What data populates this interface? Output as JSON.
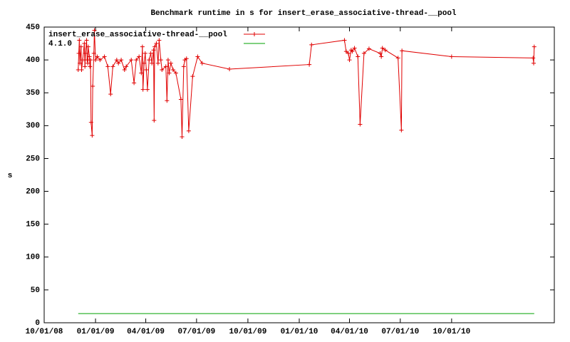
{
  "chart_data": {
    "type": "line",
    "title": "Benchmark runtime in s for insert_erase_associative-thread-__pool",
    "y_label": "s",
    "xlim": [
      "2008-10-01",
      "2011-04-03"
    ],
    "xticks": [
      {
        "value": "2008-10-01",
        "label": "10/01/08"
      },
      {
        "value": "2009-01-01",
        "label": "01/01/09"
      },
      {
        "value": "2009-04-01",
        "label": "04/01/09"
      },
      {
        "value": "2009-07-01",
        "label": "07/01/09"
      },
      {
        "value": "2009-10-01",
        "label": "10/01/09"
      },
      {
        "value": "2010-01-01",
        "label": "01/01/10"
      },
      {
        "value": "2010-04-01",
        "label": "04/01/10"
      },
      {
        "value": "2010-07-01",
        "label": "07/01/10"
      },
      {
        "value": "2010-10-01",
        "label": "10/01/10"
      }
    ],
    "ylim": [
      0,
      450
    ],
    "yticks": [
      0,
      50,
      100,
      150,
      200,
      250,
      300,
      350,
      400,
      450
    ],
    "legend": "top-left",
    "series": [
      {
        "name": "insert_erase_associative-thread-__pool",
        "color": "#e00000",
        "markers": true,
        "x": [
          "2008-12-01",
          "2008-12-02",
          "2008-12-03",
          "2008-12-04",
          "2008-12-06",
          "2008-12-07",
          "2008-12-09",
          "2008-12-12",
          "2008-12-13",
          "2008-12-14",
          "2008-12-16",
          "2008-12-17",
          "2008-12-18",
          "2008-12-19",
          "2008-12-21",
          "2008-12-22",
          "2008-12-23",
          "2008-12-24",
          "2008-12-26",
          "2008-12-27",
          "2008-12-29",
          "2008-12-30",
          "2009-01-01",
          "2009-01-04",
          "2009-01-09",
          "2009-01-17",
          "2009-01-23",
          "2009-01-28",
          "2009-02-01",
          "2009-02-08",
          "2009-02-11",
          "2009-02-16",
          "2009-02-22",
          "2009-02-25",
          "2009-03-06",
          "2009-03-11",
          "2009-03-15",
          "2009-03-20",
          "2009-03-24",
          "2009-03-26",
          "2009-03-27",
          "2009-03-29",
          "2009-03-31",
          "2009-04-02",
          "2009-04-04",
          "2009-04-07",
          "2009-04-10",
          "2009-04-12",
          "2009-04-15",
          "2009-04-16",
          "2009-04-17",
          "2009-04-20",
          "2009-04-23",
          "2009-04-25",
          "2009-04-28",
          "2009-04-30",
          "2009-05-07",
          "2009-05-09",
          "2009-05-11",
          "2009-05-13",
          "2009-05-16",
          "2009-05-20",
          "2009-05-25",
          "2009-06-03",
          "2009-06-05",
          "2009-06-08",
          "2009-06-10",
          "2009-06-13",
          "2009-06-17",
          "2009-06-24",
          "2009-07-03",
          "2009-07-11",
          "2009-08-29",
          "2010-01-19",
          "2010-01-23",
          "2010-03-23",
          "2010-03-26",
          "2010-03-30",
          "2010-04-01",
          "2010-04-04",
          "2010-04-06",
          "2010-04-10",
          "2010-04-16",
          "2010-04-20",
          "2010-04-27",
          "2010-05-06",
          "2010-05-26",
          "2010-05-28",
          "2010-05-30",
          "2010-06-04",
          "2010-06-27",
          "2010-07-03",
          "2010-07-04",
          "2010-10-01",
          "2011-02-24",
          "2011-02-25",
          "2011-02-26"
        ],
        "values": [
          385,
          410,
          430,
          395,
          420,
          385,
          400,
          425,
          390,
          410,
          430,
          400,
          395,
          420,
          405,
          390,
          400,
          305,
          285,
          360,
          410,
          445,
          400,
          405,
          400,
          405,
          390,
          348,
          390,
          400,
          395,
          400,
          385,
          390,
          400,
          365,
          400,
          405,
          380,
          420,
          355,
          395,
          410,
          385,
          355,
          400,
          410,
          395,
          415,
          308,
          420,
          425,
          395,
          430,
          400,
          385,
          390,
          338,
          400,
          380,
          395,
          385,
          380,
          340,
          283,
          390,
          400,
          402,
          292,
          375,
          405,
          395,
          386,
          393,
          423,
          430,
          413,
          410,
          400,
          415,
          413,
          418,
          405,
          302,
          410,
          417,
          410,
          405,
          418,
          415,
          403,
          293,
          414,
          405,
          403,
          395,
          420
        ]
      },
      {
        "name": "4.1.0",
        "color": "#00a000",
        "markers": false,
        "x": [
          "2008-12-01",
          "2011-02-26"
        ],
        "values": [
          14,
          14
        ]
      }
    ]
  }
}
